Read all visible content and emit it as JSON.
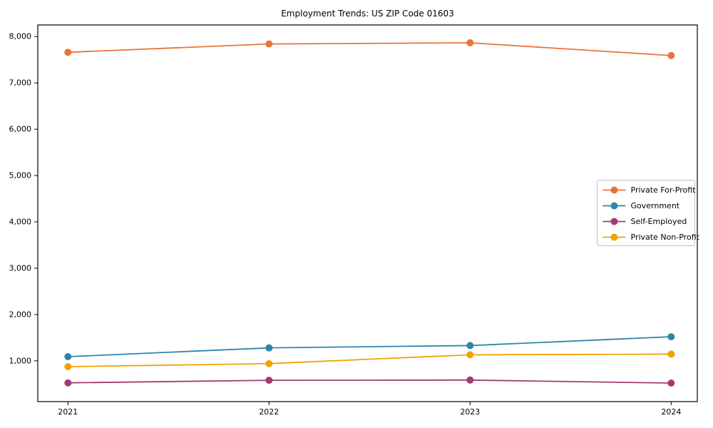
{
  "figure": {
    "background": "#ffffff",
    "frame_color": "#000000"
  },
  "chart_data": {
    "type": "line",
    "title": "Employment Trends: US ZIP Code 01603",
    "categories": [
      "2021",
      "2022",
      "2023",
      "2024"
    ],
    "x_values": [
      2021,
      2022,
      2023,
      2024
    ],
    "series": [
      {
        "name": "Private For-Profit",
        "color": "#E8743B",
        "values": [
          7660,
          7840,
          7865,
          7590
        ]
      },
      {
        "name": "Government",
        "color": "#2E86AB",
        "values": [
          1090,
          1280,
          1330,
          1520
        ]
      },
      {
        "name": "Self-Employed",
        "color": "#A23B72",
        "values": [
          525,
          580,
          585,
          520
        ]
      },
      {
        "name": "Private Non-Profit",
        "color": "#F2A104",
        "values": [
          875,
          940,
          1130,
          1145
        ]
      }
    ],
    "xlabel": "",
    "ylabel": "",
    "xlim": [
      2020.85,
      2024.13
    ],
    "ylim": [
      120,
      8250
    ],
    "yticks": [
      1000,
      2000,
      3000,
      4000,
      5000,
      6000,
      7000,
      8000
    ],
    "ytick_labels": [
      "1,000",
      "2,000",
      "3,000",
      "4,000",
      "5,000",
      "6,000",
      "7,000",
      "8,000"
    ],
    "xtick_labels": [
      "2021",
      "2022",
      "2023",
      "2024"
    ],
    "grid": false,
    "legend_position": "center right",
    "marker": "circle",
    "line_width": 1.8,
    "marker_radius": 5
  }
}
